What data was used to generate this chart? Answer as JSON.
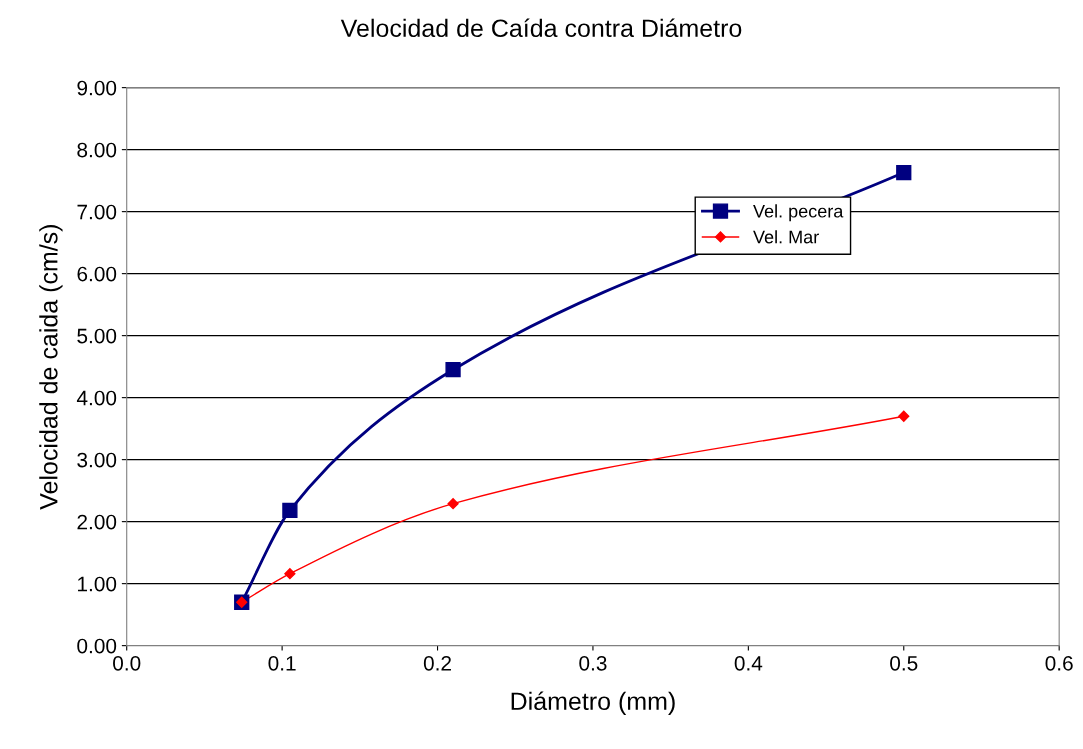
{
  "chart_data": {
    "type": "line",
    "title": "Velocidad de Caída contra Diámetro",
    "xlabel": "Diámetro (mm)",
    "ylabel": "Velocidad de caida (cm/s)",
    "x": [
      0.074,
      0.105,
      0.21,
      0.5
    ],
    "series": [
      {
        "name": "Vel. pecera",
        "color": "#000080",
        "values": [
          0.7,
          2.18,
          4.45,
          7.63
        ],
        "marker": "square"
      },
      {
        "name": "Vel. Mar",
        "color": "#ff0000",
        "values": [
          0.7,
          1.16,
          2.29,
          3.7
        ],
        "marker": "diamond"
      }
    ],
    "xlim": [
      0,
      0.6
    ],
    "xticks": [
      {
        "value": 0,
        "label": "0.0"
      },
      {
        "value": 0.1,
        "label": "0.1"
      },
      {
        "value": 0.2,
        "label": "0.2"
      },
      {
        "value": 0.3,
        "label": "0.3"
      },
      {
        "value": 0.4,
        "label": "0.4"
      },
      {
        "value": 0.5,
        "label": "0.5"
      },
      {
        "value": 0.6,
        "label": "0.6"
      }
    ],
    "ylim": [
      0,
      9
    ],
    "yticks": [
      {
        "value": 0,
        "label": "0.00"
      },
      {
        "value": 1,
        "label": "1.00"
      },
      {
        "value": 2,
        "label": "2.00"
      },
      {
        "value": 3,
        "label": "3.00"
      },
      {
        "value": 4,
        "label": "4.00"
      },
      {
        "value": 5,
        "label": "5.00"
      },
      {
        "value": 6,
        "label": "6.00"
      },
      {
        "value": 7,
        "label": "7.00"
      },
      {
        "value": 8,
        "label": "8.00"
      },
      {
        "value": 9,
        "label": "9.00"
      }
    ],
    "grid": "y",
    "legend": "right"
  }
}
